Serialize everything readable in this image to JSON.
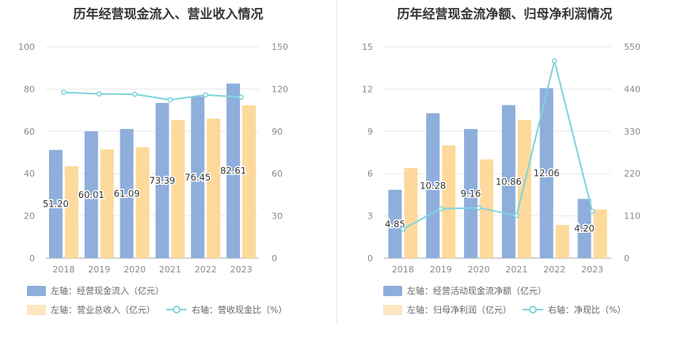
{
  "chart_data": [
    {
      "type": "bar",
      "title": "历年经营现金流入、营业收入情况",
      "categories": [
        "2018",
        "2019",
        "2020",
        "2021",
        "2022",
        "2023"
      ],
      "series": [
        {
          "name": "左轴：经营现金流入（亿元）",
          "axis": "left",
          "kind": "bar",
          "color": "#8eaedb",
          "values": [
            51.2,
            60.01,
            61.09,
            73.39,
            76.45,
            82.61
          ],
          "labels": [
            "51.20",
            "60.01",
            "61.09",
            "73.39",
            "76.45",
            "82.61"
          ]
        },
        {
          "name": "左轴：营业总收入（亿元）",
          "axis": "left",
          "kind": "bar",
          "color": "#fdd99b",
          "values": [
            43.5,
            51.5,
            52.5,
            65.3,
            66.0,
            72.3
          ]
        },
        {
          "name": "右轴：营收现金比（%）",
          "axis": "right",
          "kind": "line",
          "color": "#7fd4db",
          "values": [
            117.6,
            116.5,
            116.3,
            112.3,
            115.8,
            114.2
          ]
        }
      ],
      "left_axis": {
        "ylim": [
          0,
          100
        ],
        "ticks": [
          "0",
          "20",
          "40",
          "60",
          "80",
          "100"
        ]
      },
      "right_axis": {
        "ylim": [
          0,
          150
        ],
        "ticks": [
          "0",
          "30",
          "60",
          "90",
          "120",
          "150"
        ]
      },
      "legend_position": "bottom-left"
    },
    {
      "type": "bar",
      "title": "历年经营现金流净额、归母净利润情况",
      "categories": [
        "2018",
        "2019",
        "2020",
        "2021",
        "2022",
        "2023"
      ],
      "series": [
        {
          "name": "左轴：经营活动现金流净额（亿元）",
          "axis": "left",
          "kind": "bar",
          "color": "#8eaedb",
          "values": [
            4.85,
            10.28,
            9.16,
            10.86,
            12.06,
            4.2
          ],
          "labels": [
            "4.85",
            "10.28",
            "9.16",
            "10.86",
            "12.06",
            "4.20"
          ]
        },
        {
          "name": "左轴：归母净利润（亿元）",
          "axis": "left",
          "kind": "bar",
          "color": "#fdd99b",
          "values": [
            6.4,
            8.0,
            7.0,
            9.8,
            2.35,
            3.45
          ]
        },
        {
          "name": "右轴：净现比（%）",
          "axis": "right",
          "kind": "line",
          "color": "#7fd4db",
          "values": [
            75.8,
            128.5,
            130.9,
            110.8,
            513.2,
            121.7
          ]
        }
      ],
      "left_axis": {
        "ylim": [
          0,
          15
        ],
        "ticks": [
          "0",
          "3",
          "6",
          "9",
          "12",
          "15"
        ]
      },
      "right_axis": {
        "ylim": [
          0,
          550
        ],
        "ticks": [
          "0",
          "110",
          "220",
          "330",
          "440",
          "550"
        ]
      },
      "legend_position": "bottom-left"
    }
  ]
}
